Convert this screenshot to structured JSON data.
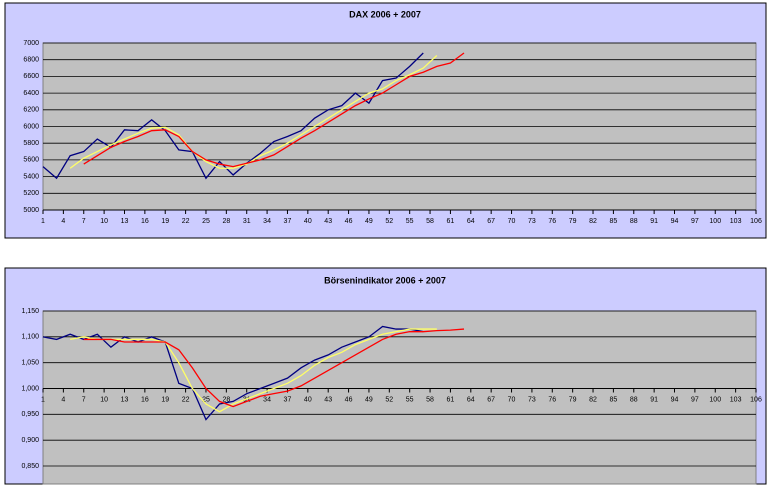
{
  "chart_data": [
    {
      "type": "line",
      "title": "DAX 2006 + 2007",
      "x": [
        1,
        3,
        5,
        7,
        9,
        11,
        13,
        15,
        17,
        19,
        21,
        23,
        25,
        27,
        29,
        31,
        33,
        35,
        37,
        39,
        41,
        43,
        45,
        47,
        49,
        51,
        53,
        55,
        57,
        59,
        61,
        63
      ],
      "series": [
        {
          "color": "#000080",
          "values": [
            5520,
            5380,
            5650,
            5700,
            5850,
            5750,
            5960,
            5950,
            6080,
            5950,
            5720,
            5700,
            5380,
            5580,
            5420,
            5560,
            5680,
            5820,
            5880,
            5950,
            6100,
            6200,
            6250,
            6400,
            6280,
            6550,
            6580,
            6720,
            6880,
            null,
            null,
            null
          ]
        },
        {
          "color": "#ffff66",
          "values": [
            null,
            null,
            5500,
            5620,
            5700,
            5780,
            5850,
            5920,
            5980,
            5990,
            5900,
            5700,
            5580,
            5500,
            5500,
            5550,
            5650,
            5720,
            5800,
            5900,
            6000,
            6100,
            6200,
            6300,
            6400,
            6450,
            6550,
            6620,
            6700,
            6850,
            null,
            null
          ]
        },
        {
          "color": "#ff0000",
          "values": [
            null,
            null,
            null,
            5550,
            5650,
            5750,
            5820,
            5880,
            5950,
            5960,
            5880,
            5700,
            5600,
            5550,
            5520,
            5560,
            5600,
            5660,
            5760,
            5860,
            5950,
            6050,
            6150,
            6250,
            6330,
            6400,
            6500,
            6600,
            6650,
            6720,
            6760,
            6880
          ]
        }
      ],
      "xlim": [
        1,
        106
      ],
      "xticks": [
        1,
        4,
        7,
        10,
        13,
        16,
        19,
        22,
        25,
        28,
        31,
        34,
        37,
        40,
        43,
        46,
        49,
        52,
        55,
        58,
        61,
        64,
        67,
        70,
        73,
        76,
        79,
        82,
        85,
        88,
        91,
        94,
        97,
        100,
        103,
        106
      ],
      "ylim": [
        5000,
        7000
      ],
      "yticks": [
        5000,
        5200,
        5400,
        5600,
        5800,
        6000,
        6200,
        6400,
        6600,
        6800,
        7000
      ],
      "grid": true
    },
    {
      "type": "line",
      "title": "Börsenindikator 2006 + 2007",
      "x": [
        1,
        3,
        5,
        7,
        9,
        11,
        13,
        15,
        17,
        19,
        21,
        23,
        25,
        27,
        29,
        31,
        33,
        35,
        37,
        39,
        41,
        43,
        45,
        47,
        49,
        51,
        53,
        55,
        57,
        59,
        61,
        63
      ],
      "series": [
        {
          "color": "#000080",
          "values": [
            1.1,
            1.095,
            1.105,
            1.095,
            1.105,
            1.08,
            1.1,
            1.09,
            1.1,
            1.09,
            1.01,
            1.0,
            0.94,
            0.97,
            0.975,
            0.99,
            1.0,
            1.01,
            1.02,
            1.04,
            1.055,
            1.065,
            1.08,
            1.09,
            1.1,
            1.12,
            1.115,
            1.115,
            1.11,
            null,
            null,
            null
          ]
        },
        {
          "color": "#ffff66",
          "values": [
            null,
            null,
            1.095,
            1.1,
            1.095,
            1.095,
            1.095,
            1.095,
            1.095,
            1.09,
            1.05,
            1.0,
            0.97,
            0.955,
            0.97,
            0.98,
            0.99,
            1.0,
            1.01,
            1.025,
            1.045,
            1.06,
            1.07,
            1.085,
            1.095,
            1.105,
            1.11,
            1.115,
            1.115,
            1.115,
            null,
            null
          ]
        },
        {
          "color": "#ff0000",
          "values": [
            null,
            null,
            null,
            1.095,
            1.095,
            1.095,
            1.09,
            1.09,
            1.09,
            1.09,
            1.075,
            1.04,
            1.0,
            0.975,
            0.965,
            0.975,
            0.985,
            0.99,
            0.995,
            1.005,
            1.02,
            1.035,
            1.05,
            1.065,
            1.08,
            1.095,
            1.105,
            1.11,
            1.11,
            1.112,
            1.113,
            1.115
          ]
        }
      ],
      "xlim": [
        1,
        106
      ],
      "xticks": [
        1,
        4,
        7,
        10,
        13,
        16,
        19,
        22,
        25,
        28,
        31,
        34,
        37,
        40,
        43,
        46,
        49,
        52,
        55,
        58,
        61,
        64,
        67,
        70,
        73,
        76,
        79,
        82,
        85,
        88,
        91,
        94,
        97,
        100,
        103,
        106
      ],
      "ylim": [
        0.85,
        1.15
      ],
      "yticks": [
        {
          "value": 0.85,
          "label": "0,850"
        },
        {
          "value": 0.9,
          "label": "0,900"
        },
        {
          "value": 0.95,
          "label": "0,950"
        },
        {
          "value": 1.0,
          "label": "1,000"
        },
        {
          "value": 1.05,
          "label": "1,050"
        },
        {
          "value": 1.1,
          "label": "1,100"
        },
        {
          "value": 1.15,
          "label": "1,150"
        }
      ],
      "grid": true
    }
  ]
}
